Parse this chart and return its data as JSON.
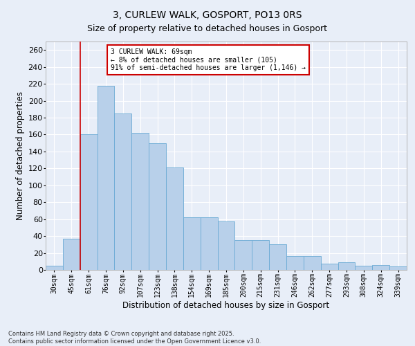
{
  "title": "3, CURLEW WALK, GOSPORT, PO13 0RS",
  "subtitle": "Size of property relative to detached houses in Gosport",
  "xlabel": "Distribution of detached houses by size in Gosport",
  "ylabel": "Number of detached properties",
  "categories": [
    "30sqm",
    "45sqm",
    "61sqm",
    "76sqm",
    "92sqm",
    "107sqm",
    "123sqm",
    "138sqm",
    "154sqm",
    "169sqm",
    "185sqm",
    "200sqm",
    "215sqm",
    "231sqm",
    "246sqm",
    "262sqm",
    "277sqm",
    "293sqm",
    "308sqm",
    "324sqm",
    "339sqm"
  ],
  "values": [
    5,
    37,
    160,
    218,
    185,
    162,
    150,
    121,
    62,
    62,
    57,
    35,
    35,
    30,
    16,
    16,
    7,
    9,
    5,
    6,
    4
  ],
  "bar_color": "#b8d0ea",
  "bar_edge_color": "#6aaad4",
  "vline_x": 1.5,
  "vline_color": "#cc0000",
  "annotation_text": "3 CURLEW WALK: 69sqm\n← 8% of detached houses are smaller (105)\n91% of semi-detached houses are larger (1,146) →",
  "annotation_box_color": "#ffffff",
  "annotation_box_edgecolor": "#cc0000",
  "ylim": [
    0,
    270
  ],
  "yticks": [
    0,
    20,
    40,
    60,
    80,
    100,
    120,
    140,
    160,
    180,
    200,
    220,
    240,
    260
  ],
  "footer": "Contains HM Land Registry data © Crown copyright and database right 2025.\nContains public sector information licensed under the Open Government Licence v3.0.",
  "bg_color": "#e8eef8",
  "grid_color": "#ffffff",
  "title_fontsize": 10,
  "subtitle_fontsize": 9,
  "xlabel_fontsize": 8.5,
  "ylabel_fontsize": 8.5,
  "xtick_fontsize": 7,
  "ytick_fontsize": 8,
  "annotation_fontsize": 7,
  "footer_fontsize": 6
}
